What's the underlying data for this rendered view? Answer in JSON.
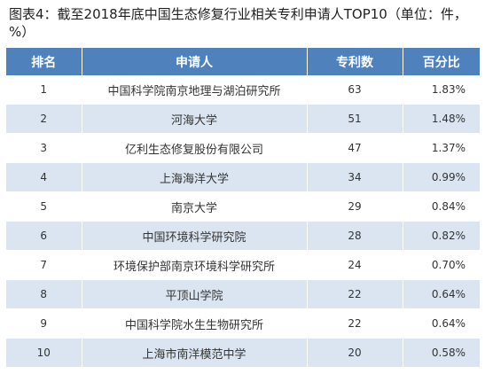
{
  "caption": "图表4：截至2018年底中国生态修复行业相关专利申请人TOP10（单位：件，%）",
  "table": {
    "headers": [
      "排名",
      "申请人",
      "专利数",
      "百分比"
    ],
    "rows": [
      {
        "rank": "1",
        "name": "中国科学院南京地理与湖泊研究所",
        "count": "63",
        "pct": "1.83%"
      },
      {
        "rank": "2",
        "name": "河海大学",
        "count": "51",
        "pct": "1.48%"
      },
      {
        "rank": "3",
        "name": "亿利生态修复股份有限公司",
        "count": "47",
        "pct": "1.37%"
      },
      {
        "rank": "4",
        "name": "上海海洋大学",
        "count": "34",
        "pct": "0.99%"
      },
      {
        "rank": "5",
        "name": "南京大学",
        "count": "29",
        "pct": "0.84%"
      },
      {
        "rank": "6",
        "name": "中国环境科学研究院",
        "count": "28",
        "pct": "0.82%"
      },
      {
        "rank": "7",
        "name": "环境保护部南京环境科学研究所",
        "count": "24",
        "pct": "0.70%"
      },
      {
        "rank": "8",
        "name": "平顶山学院",
        "count": "22",
        "pct": "0.64%"
      },
      {
        "rank": "9",
        "name": "中国科学院水生生物研究所",
        "count": "22",
        "pct": "0.64%"
      },
      {
        "rank": "10",
        "name": "上海市南洋模范中学",
        "count": "20",
        "pct": "0.58%"
      }
    ]
  },
  "colors": {
    "header_bg": "#4f81bd",
    "stripe_bg": "#dbe5f1"
  }
}
